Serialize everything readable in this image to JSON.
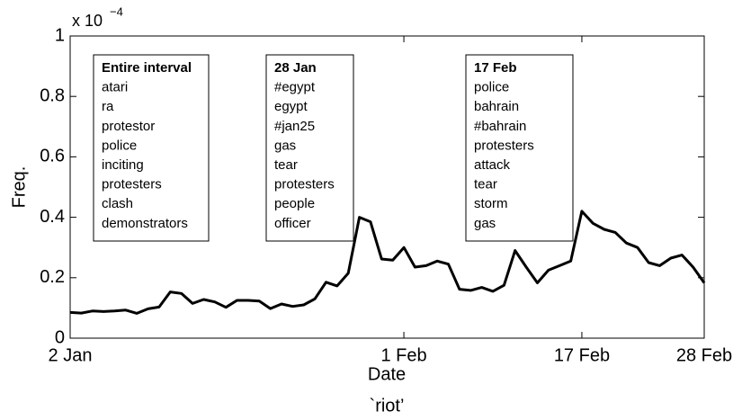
{
  "chart_data": {
    "type": "line",
    "xlabel": "Date",
    "ylabel": "Freq.",
    "caption": "`riot’",
    "y_multiplier": {
      "base": "x 10",
      "exponent": "−4"
    },
    "categories": [
      "2 Jan",
      null,
      null,
      null,
      null,
      null,
      null,
      null,
      null,
      null,
      null,
      null,
      null,
      null,
      null,
      null,
      null,
      null,
      null,
      null,
      null,
      null,
      null,
      null,
      null,
      null,
      null,
      null,
      null,
      null,
      "1 Feb",
      null,
      null,
      null,
      null,
      null,
      null,
      null,
      null,
      null,
      null,
      null,
      null,
      null,
      null,
      null,
      "17 Feb",
      null,
      null,
      null,
      null,
      null,
      null,
      null,
      null,
      null,
      null,
      "28 Feb"
    ],
    "series": [
      {
        "name": "riot",
        "color": "#000000",
        "values": [
          0.085,
          0.083,
          0.09,
          0.088,
          0.09,
          0.093,
          0.082,
          0.097,
          0.103,
          0.153,
          0.148,
          0.115,
          0.128,
          0.12,
          0.102,
          0.125,
          0.125,
          0.123,
          0.098,
          0.113,
          0.105,
          0.11,
          0.13,
          0.185,
          0.173,
          0.215,
          0.4,
          0.385,
          0.262,
          0.258,
          0.3,
          0.235,
          0.24,
          0.255,
          0.245,
          0.162,
          0.158,
          0.168,
          0.155,
          0.175,
          0.29,
          0.235,
          0.183,
          0.225,
          0.24,
          0.255,
          0.42,
          0.38,
          0.36,
          0.35,
          0.315,
          0.3,
          0.25,
          0.24,
          0.265,
          0.275,
          0.235,
          0.183
        ]
      }
    ],
    "ylim": [
      0,
      1
    ],
    "yticks": [
      0,
      0.2,
      0.4,
      0.6,
      0.8,
      1
    ],
    "grid": false,
    "annotations": [
      {
        "title": "Entire interval",
        "words": [
          "atari",
          "ra",
          "protestor",
          "police",
          "inciting",
          "protesters",
          "clash",
          "demonstrators"
        ]
      },
      {
        "title": "28 Jan",
        "words": [
          "#egypt",
          "egypt",
          "#jan25",
          "gas",
          "tear",
          "protesters",
          "people",
          "officer"
        ]
      },
      {
        "title": "17 Feb",
        "words": [
          "police",
          "bahrain",
          "#bahrain",
          "protesters",
          "attack",
          "tear",
          "storm",
          "gas"
        ]
      }
    ]
  }
}
